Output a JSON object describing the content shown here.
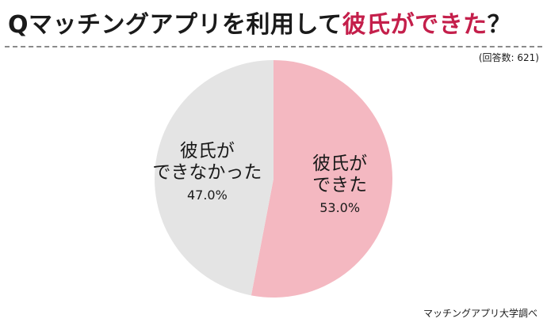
{
  "header": {
    "title_main": "Qマッチングアプリを利用して",
    "title_accent": "彼氏ができた",
    "title_end": "？",
    "respondents": "(回答数: 621)"
  },
  "footer": {
    "source": "マッチングアプリ大学調べ"
  },
  "colors": {
    "accent": "#c41f4b",
    "slice_yes": "#f4b8c1",
    "slice_no": "#e4e4e4"
  },
  "chart_data": {
    "type": "pie",
    "title": "Qマッチングアプリを利用して彼氏ができた？",
    "slices": [
      {
        "label_lines": [
          "彼氏が",
          "できた"
        ],
        "value": 53.0,
        "value_label": "53.0%",
        "color": "#f4b8c1"
      },
      {
        "label_lines": [
          "彼氏が",
          "できなかった"
        ],
        "value": 47.0,
        "value_label": "47.0%",
        "color": "#e4e4e4"
      }
    ],
    "start_angle": "12 o'clock",
    "direction": "clockwise"
  }
}
